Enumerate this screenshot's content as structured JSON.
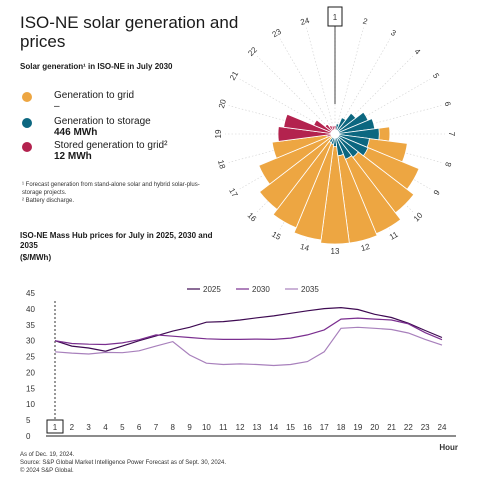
{
  "title": "ISO-NE solar generation and prices",
  "subtitle_top": "Solar generation¹ in ISO-NE in July 2030",
  "legend": {
    "grid": {
      "label": "Generation to grid",
      "value": "–",
      "color": "#EDA642"
    },
    "storage": {
      "label": "Generation to storage",
      "value": "446 MWh",
      "color": "#0C6780"
    },
    "stored": {
      "label": "Stored generation to grid²",
      "value": "12 MWh",
      "color": "#B3224E"
    }
  },
  "notes": [
    "¹ Forecast generation from stand-alone solar and hybrid solar-plus-storage projects.",
    "² Battery discharge."
  ],
  "subtitle_bottom": "ISO-NE Mass Hub prices for July in 2025, 2030 and 2035",
  "unit_label": "($/MWh)",
  "footer": [
    "As of Dec. 19, 2024.",
    "Source: S&P Global Market Intelligence Power Forecast as of Sept. 30, 2024.",
    "© 2024 S&P Global."
  ],
  "chart_data": [
    {
      "type": "radial-bar",
      "categories": [
        "1",
        "2",
        "3",
        "4",
        "5",
        "6",
        "7",
        "8",
        "9",
        "10",
        "11",
        "12",
        "13",
        "14",
        "15",
        "16",
        "17",
        "18",
        "19",
        "20",
        "21",
        "22",
        "23",
        "24"
      ],
      "highlight_category": "1",
      "series": [
        {
          "name": "Generation to grid",
          "color": "#EDA642",
          "values": [
            0,
            0,
            0,
            0,
            0,
            0,
            0.48,
            0.65,
            0.82,
            0.9,
            0.98,
            1.0,
            1.0,
            0.97,
            0.92,
            0.86,
            0.74,
            0.56,
            0,
            0,
            0,
            0,
            0,
            0
          ]
        },
        {
          "name": "Generation to storage",
          "color": "#0C6780",
          "values": [
            0,
            0.06,
            0.13,
            0.21,
            0.3,
            0.34,
            0.38,
            0.29,
            0.3,
            0.24,
            0.22,
            0.17,
            0.08,
            0.06,
            0.05,
            0,
            0,
            0,
            0,
            0,
            0,
            0,
            0,
            0
          ]
        },
        {
          "name": "Stored generation to grid",
          "color": "#B3224E",
          "values": [
            0.04,
            0,
            0,
            0,
            0,
            0,
            0,
            0,
            0,
            0,
            0,
            0,
            0,
            0,
            0,
            0,
            0,
            0.04,
            0.5,
            0.45,
            0.18,
            0.08,
            0.05,
            0.04
          ]
        }
      ]
    },
    {
      "type": "line",
      "x": [
        1,
        2,
        3,
        4,
        5,
        6,
        7,
        8,
        9,
        10,
        11,
        12,
        13,
        14,
        15,
        16,
        17,
        18,
        19,
        20,
        21,
        22,
        23,
        24
      ],
      "highlight_x": 1,
      "series": [
        {
          "name": "2025",
          "color": "#3E0A52",
          "values": [
            30.0,
            28.3,
            27.7,
            26.7,
            28.3,
            30.0,
            31.5,
            33.0,
            34.2,
            35.8,
            36.0,
            36.5,
            37.2,
            37.8,
            38.6,
            39.4,
            40.1,
            40.4,
            39.8,
            38.3,
            37.3,
            35.5,
            33.2,
            31.0
          ]
        },
        {
          "name": "2030",
          "color": "#7A2E8F",
          "values": [
            30.0,
            29.1,
            28.9,
            28.8,
            29.3,
            30.3,
            31.8,
            31.4,
            31.0,
            30.6,
            30.4,
            30.4,
            30.5,
            30.4,
            30.8,
            31.8,
            33.4,
            36.8,
            37.1,
            36.8,
            36.5,
            35.3,
            32.5,
            30.3
          ]
        },
        {
          "name": "2035",
          "color": "#A880BC",
          "values": [
            26.5,
            26.1,
            25.8,
            26.3,
            26.2,
            26.8,
            28.3,
            29.7,
            25.5,
            22.9,
            22.5,
            22.7,
            22.5,
            22.2,
            22.5,
            23.4,
            26.5,
            33.9,
            34.2,
            33.9,
            33.5,
            32.4,
            30.4,
            28.6
          ]
        }
      ],
      "ylim": [
        0,
        45
      ],
      "yticks": [
        0,
        5,
        10,
        15,
        20,
        25,
        30,
        35,
        40,
        45
      ],
      "xlabel": "Hour",
      "grid": false
    }
  ]
}
